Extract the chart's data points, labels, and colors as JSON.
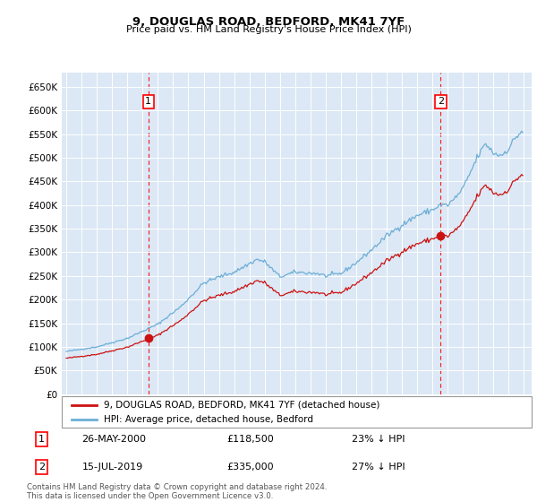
{
  "title": "9, DOUGLAS ROAD, BEDFORD, MK41 7YF",
  "subtitle": "Price paid vs. HM Land Registry's House Price Index (HPI)",
  "background_color": "#dce8f5",
  "plot_bg_color": "#dce8f5",
  "grid_color": "#c8d8e8",
  "hpi_color": "#6baed6",
  "price_color": "#cc1111",
  "marker1_year": 2000.38,
  "marker1_price": 118500,
  "marker2_year": 2019.54,
  "marker2_price": 335000,
  "ylim_min": 0,
  "ylim_max": 680000,
  "ytick_step": 50000,
  "xlim_min": 1994.7,
  "xlim_max": 2025.5,
  "legend_label_price": "9, DOUGLAS ROAD, BEDFORD, MK41 7YF (detached house)",
  "legend_label_hpi": "HPI: Average price, detached house, Bedford",
  "sale1_label": "1",
  "sale1_date": "26-MAY-2000",
  "sale1_price_str": "£118,500",
  "sale1_hpi_str": "23% ↓ HPI",
  "sale2_label": "2",
  "sale2_date": "15-JUL-2019",
  "sale2_price_str": "£335,000",
  "sale2_hpi_str": "27% ↓ HPI",
  "footer": "Contains HM Land Registry data © Crown copyright and database right 2024.\nThis data is licensed under the Open Government Licence v3.0."
}
